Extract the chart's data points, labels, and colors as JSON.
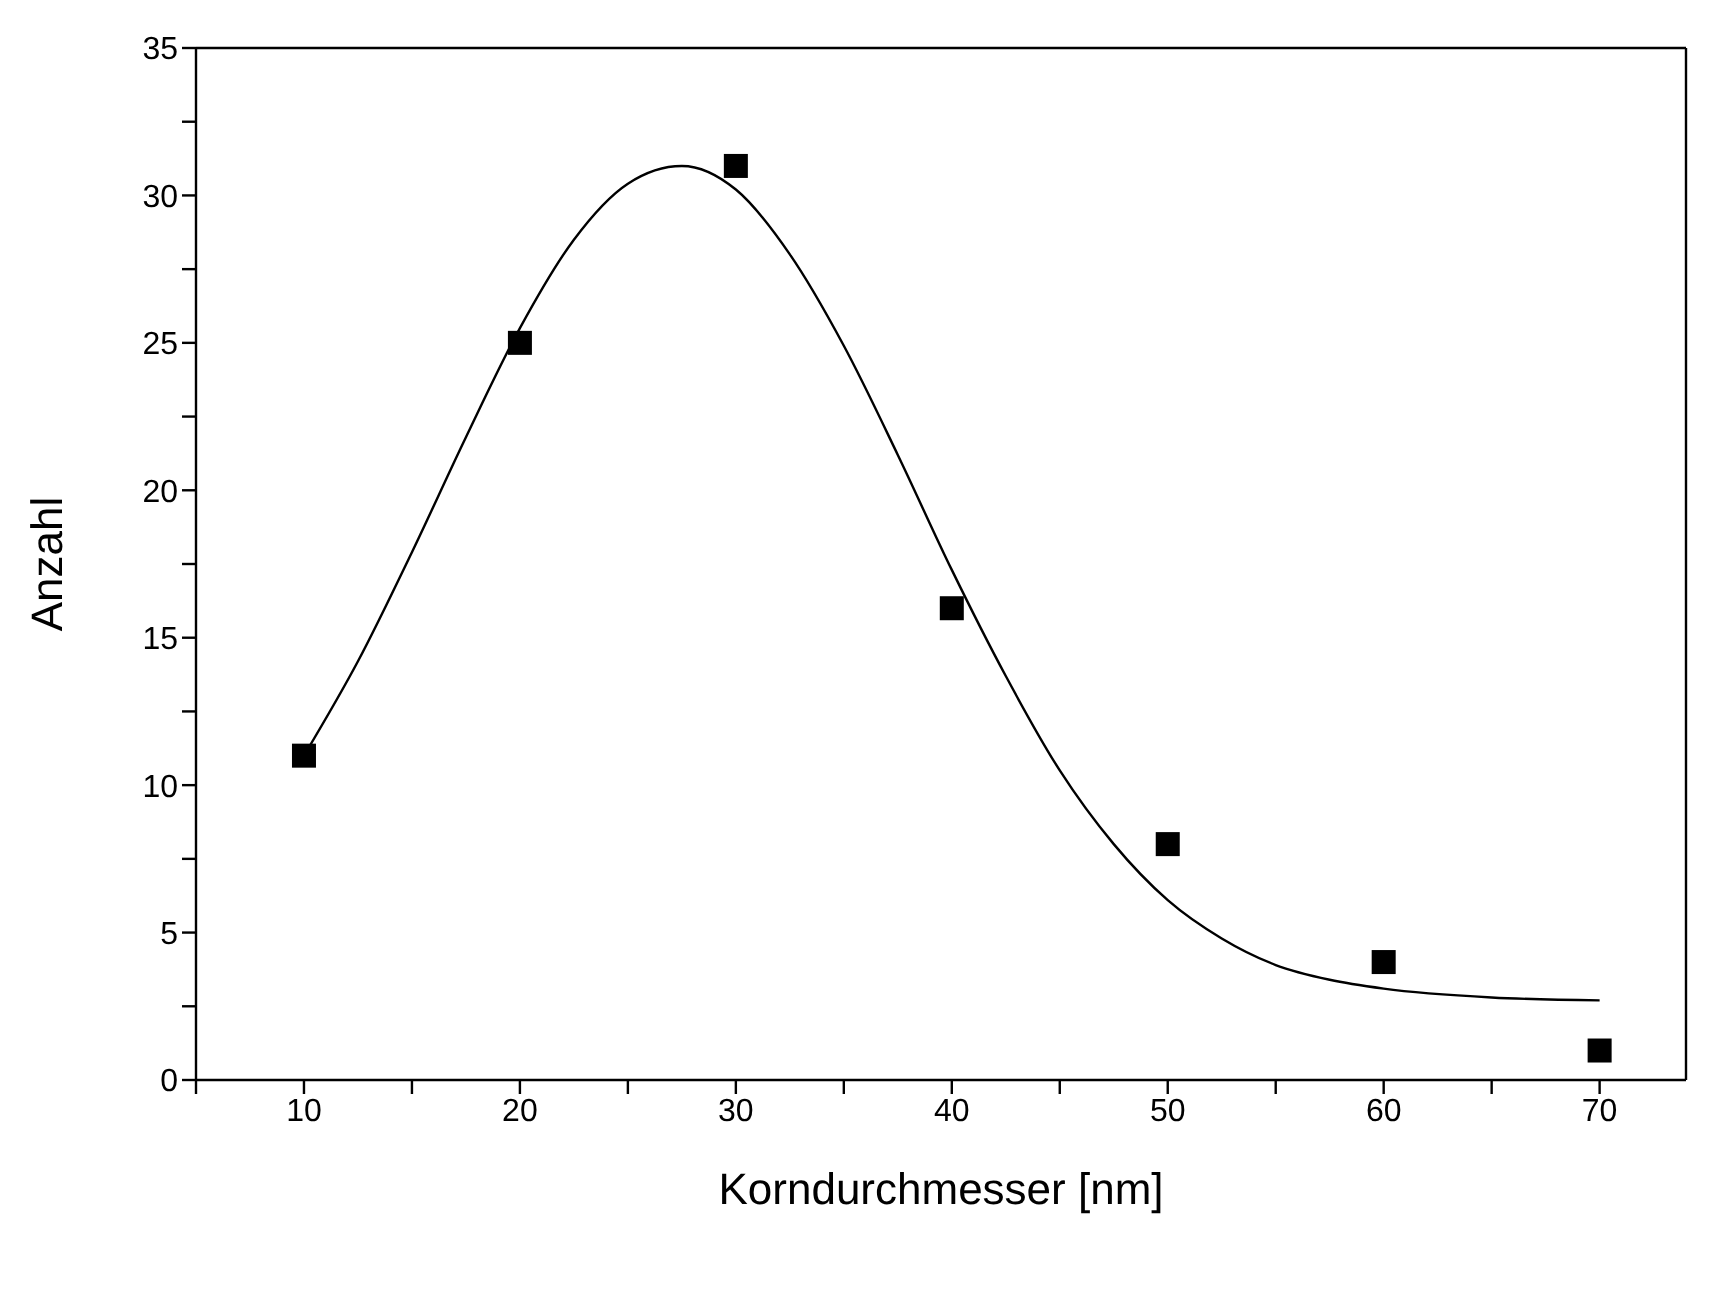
{
  "chart_data": {
    "type": "scatter",
    "xlabel": "Korndurchmesser [nm]",
    "ylabel": "Anzahl",
    "xlim": [
      5,
      74
    ],
    "xticks": [
      {
        "value": 5,
        "label": null
      },
      10,
      {
        "value": 15,
        "label": null
      },
      20,
      {
        "value": 25,
        "label": null
      },
      30,
      {
        "value": 35,
        "label": null
      },
      40,
      {
        "value": 45,
        "label": null
      },
      50,
      {
        "value": 55,
        "label": null
      },
      60,
      {
        "value": 65,
        "label": null
      },
      70
    ],
    "ylim": [
      0,
      35
    ],
    "yticks": [
      0,
      {
        "value": 2.5,
        "label": null
      },
      5,
      {
        "value": 7.5,
        "label": null
      },
      10,
      {
        "value": 12.5,
        "label": null
      },
      15,
      {
        "value": 17.5,
        "label": null
      },
      20,
      {
        "value": 22.5,
        "label": null
      },
      25,
      {
        "value": 27.5,
        "label": null
      },
      30,
      {
        "value": 32.5,
        "label": null
      },
      35
    ],
    "series": [
      {
        "color": "#000000",
        "marker": "square",
        "x": [
          10,
          20,
          30,
          40,
          50,
          60,
          70
        ],
        "values": [
          11,
          25,
          31,
          16,
          8,
          4,
          1
        ]
      },
      {
        "type": "line",
        "color": "#000000",
        "marker": "none",
        "line_style": "solid",
        "x": [
          10,
          12.5,
          15,
          17.5,
          20,
          22.5,
          25,
          27.5,
          30,
          32.5,
          35,
          37.5,
          40,
          42.5,
          45,
          47.5,
          50,
          52.5,
          55,
          57.5,
          60,
          65,
          70
        ],
        "values": [
          11,
          14.2,
          17.9,
          21.8,
          25.5,
          28.5,
          30.4,
          31,
          30.2,
          28,
          24.9,
          21.2,
          17.3,
          13.7,
          10.5,
          8,
          6.1,
          4.8,
          3.9,
          3.4,
          3.1,
          2.8,
          2.7
        ]
      }
    ]
  }
}
